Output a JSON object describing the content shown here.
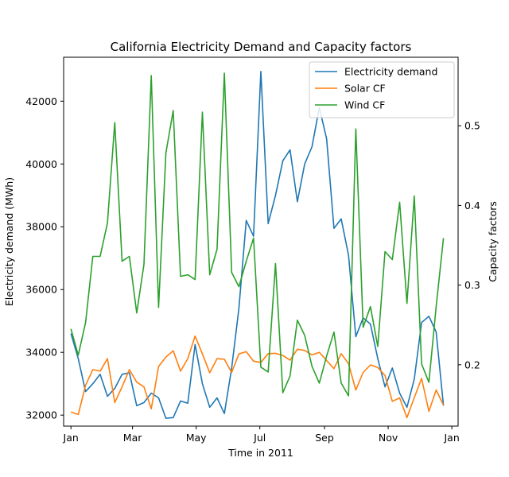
{
  "chart_data": {
    "type": "line",
    "title": "California Electricity Demand and Capacity factors",
    "xlabel": "Time in 2011",
    "ylabel_left": "Electricity demand (MWh)",
    "ylabel_right": "Capacity factors",
    "x_range": [
      "2010-12-25",
      "2012-01-07"
    ],
    "ylim_left": [
      31650,
      43400
    ],
    "ylim_right": [
      0.123,
      0.586
    ],
    "x_tick_labels": [
      "Jan",
      "Mar",
      "May",
      "Jul",
      "Sep",
      "Nov",
      "Jan"
    ],
    "x_tick_dates": [
      "2011-01-01",
      "2011-03-01",
      "2011-05-01",
      "2011-07-01",
      "2011-09-01",
      "2011-11-01",
      "2012-01-01"
    ],
    "y_left_ticks": [
      32000,
      34000,
      36000,
      38000,
      40000,
      42000
    ],
    "y_left_tick_labels": [
      "32000",
      "34000",
      "36000",
      "38000",
      "40000",
      "42000"
    ],
    "y_right_ticks": [
      0.2,
      0.3,
      0.4,
      0.5
    ],
    "y_right_tick_labels": [
      "0.2",
      "0.3",
      "0.4",
      "0.5"
    ],
    "grid": false,
    "legend_position": "top-right",
    "x": [
      "2011-01-01",
      "2011-01-08",
      "2011-01-15",
      "2011-01-22",
      "2011-01-29",
      "2011-02-05",
      "2011-02-12",
      "2011-02-19",
      "2011-02-26",
      "2011-03-05",
      "2011-03-12",
      "2011-03-19",
      "2011-03-26",
      "2011-04-02",
      "2011-04-09",
      "2011-04-16",
      "2011-04-23",
      "2011-04-30",
      "2011-05-07",
      "2011-05-14",
      "2011-05-21",
      "2011-05-28",
      "2011-06-04",
      "2011-06-11",
      "2011-06-18",
      "2011-06-25",
      "2011-07-02",
      "2011-07-09",
      "2011-07-16",
      "2011-07-23",
      "2011-07-30",
      "2011-08-06",
      "2011-08-13",
      "2011-08-20",
      "2011-08-27",
      "2011-09-03",
      "2011-09-10",
      "2011-09-17",
      "2011-09-24",
      "2011-10-01",
      "2011-10-08",
      "2011-10-15",
      "2011-10-22",
      "2011-10-29",
      "2011-11-05",
      "2011-11-12",
      "2011-11-19",
      "2011-11-26",
      "2011-12-03",
      "2011-12-10",
      "2011-12-17",
      "2011-12-24"
    ],
    "series": [
      {
        "name": "Electricity demand",
        "axis": "left",
        "color": "#1f77b4",
        "values": [
          34600,
          33800,
          32750,
          33000,
          33300,
          32600,
          32850,
          33300,
          33350,
          32300,
          32400,
          32700,
          32550,
          31900,
          31920,
          32450,
          32380,
          34250,
          33000,
          32250,
          32550,
          32050,
          33500,
          35400,
          38200,
          37700,
          42950,
          38100,
          39000,
          40100,
          40450,
          38800,
          40000,
          40550,
          41800,
          40800,
          37950,
          38250,
          37100,
          34500,
          35100,
          34900,
          33800,
          32900,
          33500,
          32700,
          32250,
          33150,
          34950,
          35150,
          34650,
          32300
        ]
      },
      {
        "name": "Solar CF",
        "axis": "left",
        "color": "#ff7f0e",
        "values": [
          32100,
          32020,
          32950,
          33450,
          33400,
          33800,
          32400,
          32900,
          33450,
          33050,
          32900,
          32200,
          33550,
          33850,
          34050,
          33400,
          33800,
          34520,
          33950,
          33350,
          33800,
          33780,
          33360,
          33950,
          34020,
          33720,
          33680,
          33960,
          33970,
          33900,
          33750,
          34100,
          34060,
          33920,
          34000,
          33740,
          33480,
          33960,
          33640,
          32800,
          33360,
          33600,
          33520,
          33260,
          32440,
          32550,
          31920,
          32560,
          33170,
          32120,
          32800,
          32320
        ]
      },
      {
        "name": "Wind CF",
        "axis": "right",
        "color": "#2ca02c",
        "values": [
          0.245,
          0.212,
          0.253,
          0.336,
          0.336,
          0.378,
          0.504,
          0.33,
          0.336,
          0.265,
          0.326,
          0.563,
          0.272,
          0.466,
          0.519,
          0.311,
          0.313,
          0.307,
          0.517,
          0.313,
          0.345,
          0.566,
          0.316,
          0.298,
          0.33,
          0.359,
          0.197,
          0.191,
          0.327,
          0.165,
          0.186,
          0.256,
          0.237,
          0.198,
          0.177,
          0.211,
          0.241,
          0.177,
          0.161,
          0.496,
          0.247,
          0.273,
          0.223,
          0.342,
          0.332,
          0.404,
          0.277,
          0.412,
          0.201,
          0.178,
          0.273,
          0.359
        ]
      }
    ]
  }
}
